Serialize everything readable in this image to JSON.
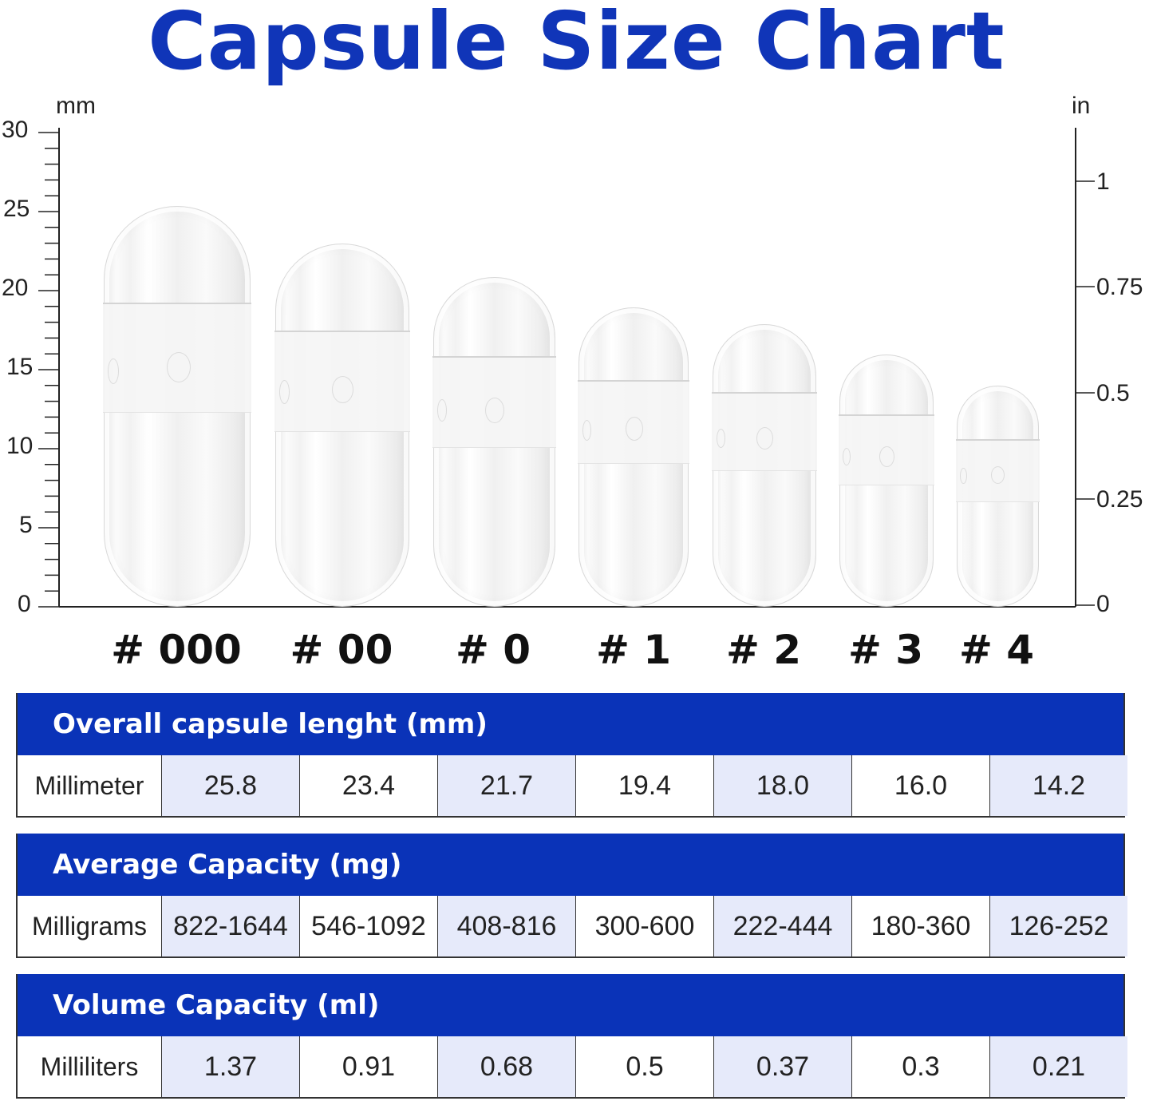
{
  "title": "Capsule Size Chart",
  "axes": {
    "left_unit": "mm",
    "right_unit": "in",
    "left_ticks": [
      "30",
      "25",
      "20",
      "15",
      "10",
      "5",
      "0"
    ],
    "right_ticks": [
      "1",
      "0.75",
      "0.5",
      "0.25",
      "0"
    ]
  },
  "sizes": [
    "# 000",
    "# 00",
    "# 0",
    "# 1",
    "# 2",
    "# 3",
    "# 4"
  ],
  "tables": [
    {
      "header": "Overall capsule lenght (mm)",
      "row_label": "Millimeter",
      "values": [
        "25.8",
        "23.4",
        "21.7",
        "19.4",
        "18.0",
        "16.0",
        "14.2"
      ]
    },
    {
      "header": "Average Capacity (mg)",
      "row_label": "Milligrams",
      "values": [
        "822-1644",
        "546-1092",
        "408-816",
        "300-600",
        "222-444",
        "180-360",
        "126-252"
      ]
    },
    {
      "header": "Volume Capacity (ml)",
      "row_label": "Milliliters",
      "values": [
        "1.37",
        "0.91",
        "0.68",
        "0.5",
        "0.37",
        "0.3",
        "0.21"
      ]
    }
  ],
  "colors": {
    "title": "#1035b8",
    "header_bg": "#0a33b8",
    "alt_cell": "#e6eafa"
  },
  "chart_data": {
    "type": "bar",
    "title": "Capsule Size Chart",
    "categories": [
      "# 000",
      "# 00",
      "# 0",
      "# 1",
      "# 2",
      "# 3",
      "# 4"
    ],
    "series": [
      {
        "name": "Overall capsule length (mm)",
        "values": [
          25.8,
          23.4,
          21.7,
          19.4,
          18.0,
          16.0,
          14.2
        ]
      },
      {
        "name": "Average Capacity (mg) min",
        "values": [
          822,
          546,
          408,
          300,
          222,
          180,
          126
        ]
      },
      {
        "name": "Average Capacity (mg) max",
        "values": [
          1644,
          1092,
          816,
          600,
          444,
          360,
          252
        ]
      },
      {
        "name": "Volume Capacity (ml)",
        "values": [
          1.37,
          0.91,
          0.68,
          0.5,
          0.37,
          0.3,
          0.21
        ]
      }
    ],
    "xlabel": "",
    "ylabel": "mm",
    "ylabel_right": "in",
    "ylim": [
      0,
      30
    ],
    "ylim_right": [
      0,
      1.18
    ],
    "yticks": [
      0,
      5,
      10,
      15,
      20,
      25,
      30
    ],
    "yticks_right": [
      0,
      0.25,
      0.5,
      0.75,
      1
    ],
    "grid": false,
    "legend": "none"
  }
}
